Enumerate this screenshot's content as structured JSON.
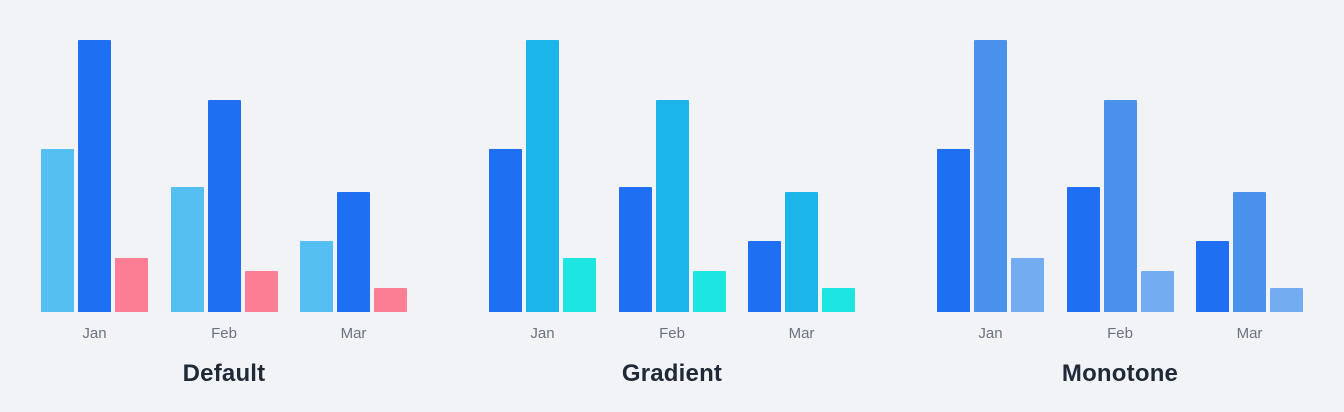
{
  "page": {
    "background_color": "#F1F3F6",
    "category_label_color": "#6B7280",
    "title_color": "#1F2937"
  },
  "chart_data": [
    {
      "type": "bar",
      "title": "Default",
      "categories": [
        "Jan",
        "Feb",
        "Mar"
      ],
      "series": [
        {
          "name": "bar-1",
          "color": "#55BFF2",
          "values": [
            60,
            46,
            26
          ]
        },
        {
          "name": "bar-2",
          "color": "#1E6FF2",
          "values": [
            100,
            78,
            44
          ]
        },
        {
          "name": "bar-3",
          "color": "#FB7E95",
          "values": [
            20,
            15,
            9
          ]
        }
      ],
      "xlabel": "",
      "ylabel": "",
      "ylim": [
        0,
        100
      ],
      "grid": false,
      "legend": false,
      "axes_visible": false
    },
    {
      "type": "bar",
      "title": "Gradient",
      "categories": [
        "Jan",
        "Feb",
        "Mar"
      ],
      "series": [
        {
          "name": "bar-1",
          "color": "#1E6FF2",
          "values": [
            60,
            46,
            26
          ]
        },
        {
          "name": "bar-2",
          "color": "#1CB5EA",
          "values": [
            100,
            78,
            44
          ]
        },
        {
          "name": "bar-3",
          "color": "#1DE6E0",
          "values": [
            20,
            15,
            9
          ]
        }
      ],
      "xlabel": "",
      "ylabel": "",
      "ylim": [
        0,
        100
      ],
      "grid": false,
      "legend": false,
      "axes_visible": false
    },
    {
      "type": "bar",
      "title": "Monotone",
      "categories": [
        "Jan",
        "Feb",
        "Mar"
      ],
      "series": [
        {
          "name": "bar-1",
          "color": "#1E6FF2",
          "values": [
            60,
            46,
            26
          ]
        },
        {
          "name": "bar-2",
          "color": "#4A91EC",
          "values": [
            100,
            78,
            44
          ]
        },
        {
          "name": "bar-3",
          "color": "#74ACF2",
          "values": [
            20,
            15,
            9
          ]
        }
      ],
      "xlabel": "",
      "ylabel": "",
      "ylim": [
        0,
        100
      ],
      "grid": false,
      "legend": false,
      "axes_visible": false
    }
  ]
}
